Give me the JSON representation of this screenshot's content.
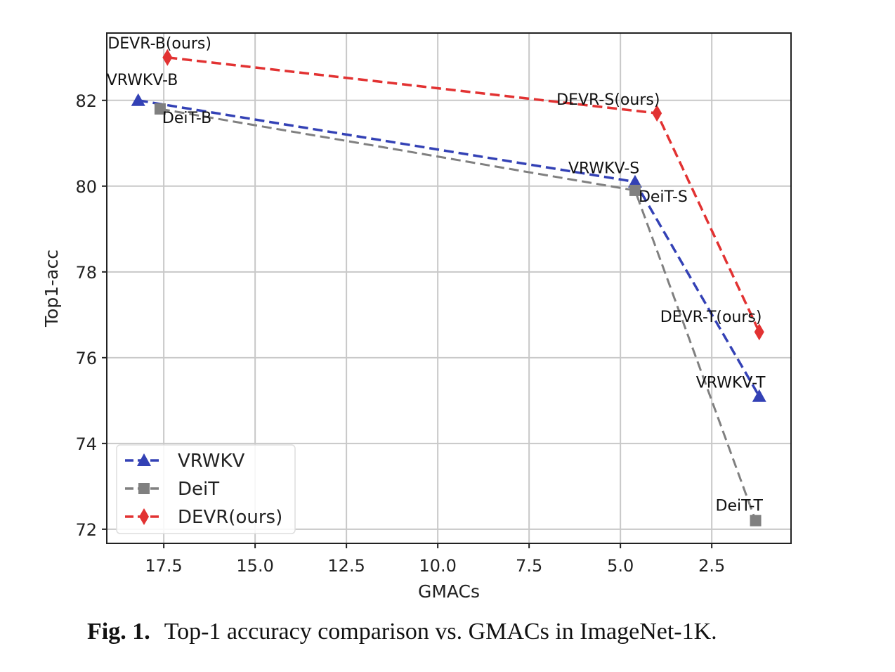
{
  "chart_data": {
    "type": "line",
    "title": "",
    "xlabel": "GMACs",
    "ylabel": "Top1-acc",
    "xlim": [
      19.06,
      0.33
    ],
    "x_reversed": true,
    "ylim": [
      71.67,
      83.57
    ],
    "xticks": [
      17.5,
      15.0,
      12.5,
      10.0,
      7.5,
      5.0,
      2.5
    ],
    "xtick_labels": [
      "17.5",
      "15.0",
      "12.5",
      "10.0",
      "7.5",
      "5.0",
      "2.5"
    ],
    "yticks": [
      72,
      74,
      76,
      78,
      80,
      82
    ],
    "ytick_labels": [
      "72",
      "74",
      "76",
      "78",
      "80",
      "82"
    ],
    "grid": true,
    "legend_position": "bottom-left",
    "series": [
      {
        "name": "VRWKV",
        "color": "#3341b5",
        "marker": "triangle",
        "linestyle": "dashed",
        "x": [
          18.2,
          4.6,
          1.2
        ],
        "y": [
          82.0,
          80.1,
          75.1
        ],
        "labels": [
          "VRWKV-B",
          "VRWKV-S",
          "VRWKV-T"
        ]
      },
      {
        "name": "DeiT",
        "color": "#808080",
        "marker": "square",
        "linestyle": "dashed",
        "x": [
          17.6,
          4.6,
          1.3
        ],
        "y": [
          81.8,
          79.9,
          72.2
        ],
        "labels": [
          "DeiT-B",
          "DeiT-S",
          "DeiT-T"
        ]
      },
      {
        "name": "DEVR(ours)",
        "color": "#e23232",
        "marker": "diamond",
        "linestyle": "dashed",
        "x": [
          17.4,
          4.0,
          1.2
        ],
        "y": [
          83.0,
          81.7,
          76.6
        ],
        "labels": [
          "DEVR-B(ours)",
          "DEVR-S(ours)",
          "DEVR-T(ours)"
        ]
      }
    ]
  },
  "caption": {
    "label": "Fig. 1.",
    "text": "Top-1 accuracy comparison vs. GMACs in ImageNet-1K."
  }
}
